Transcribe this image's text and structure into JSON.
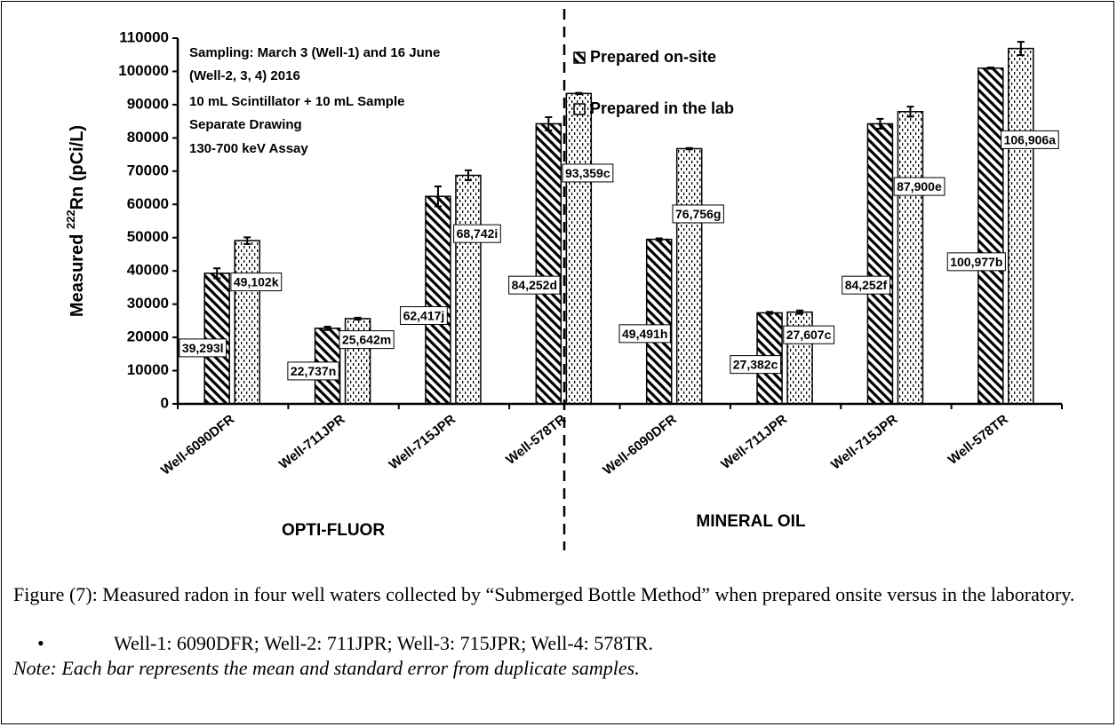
{
  "chart_data": {
    "type": "bar",
    "y_label": {
      "prefix": "Measured ",
      "superscript": "222",
      "suffix": "Rn (pCi/L)"
    },
    "annotations": [
      "Sampling: March 3 (Well-1) and 16 June",
      "(Well-2, 3, 4) 2016",
      "10 mL Scintillator + 10 mL Sample",
      "Separate Drawing",
      "130-700 keV Assay"
    ],
    "groups": [
      "OPTI-FLUOR",
      "MINERAL OIL"
    ],
    "categories": [
      "Well-6090DFR",
      "Well-711JPR",
      "Well-715JPR",
      "Well-578TR",
      "Well-6090DFR",
      "Well-711JPR",
      "Well-715JPR",
      "Well-578TR"
    ],
    "series": [
      {
        "name": "Prepared on-site",
        "color": "#000000",
        "pattern": "hatch",
        "values": [
          39293,
          22737,
          62417,
          84252,
          49491,
          27382,
          84252,
          100977
        ],
        "value_labels": [
          "39,293l",
          "22,737n",
          "62,417j",
          "84,252d",
          "49,491h",
          "27,382c",
          "84,252f",
          "100,977b"
        ],
        "errors": [
          1500,
          500,
          3000,
          2000,
          300,
          300,
          1500,
          200
        ]
      },
      {
        "name": "Prepared in the lab",
        "color": "#000000",
        "pattern": "dots",
        "values": [
          49102,
          25642,
          68742,
          93359,
          76756,
          27607,
          87900,
          106906
        ],
        "value_labels": [
          "49,102k",
          "25,642m",
          "68,742i",
          "93,359c",
          "76,756g",
          "27,607c",
          "87,900e",
          "106,906a"
        ],
        "errors": [
          1000,
          300,
          1500,
          200,
          200,
          500,
          1500,
          2000
        ]
      }
    ],
    "ylim": [
      0,
      110000
    ],
    "yticks": [
      0,
      10000,
      20000,
      30000,
      40000,
      50000,
      60000,
      70000,
      80000,
      90000,
      100000,
      110000
    ],
    "grid": false
  },
  "caption": {
    "title": "Figure (7): Measured radon in four well waters collected by “Submerged Bottle Method” when prepared onsite versus in the laboratory.",
    "bullet": "Well-1: 6090DFR; Well-2: 711JPR; Well-3: 715JPR; Well-4: 578TR.",
    "note": "Note: Each bar represents the mean and standard error from duplicate samples."
  }
}
